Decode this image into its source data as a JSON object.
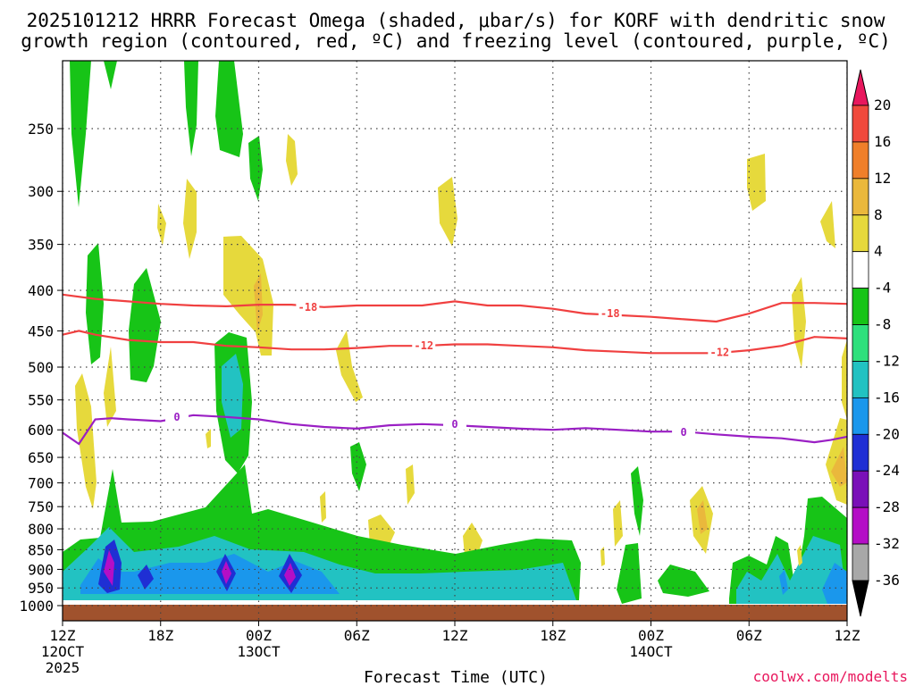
{
  "chart_data": {
    "type": "contour-timeheight",
    "title_line1": "2025101212 HRRR Forecast Omega (shaded, μbar/s) for KORF with dendritic snow",
    "title_line2": "growth region (contoured, red, ºC) and freezing level (contoured, purple, ºC)",
    "xlabel": "Forecast Time (UTC)",
    "credit": "coolwx.com/modelts",
    "x_range_hours": [
      0,
      48
    ],
    "x_ticks": [
      {
        "h": 0,
        "l1": "12Z",
        "l2": "12OCT",
        "l3": "2025"
      },
      {
        "h": 6,
        "l1": "18Z",
        "l2": "",
        "l3": ""
      },
      {
        "h": 12,
        "l1": "00Z",
        "l2": "13OCT",
        "l3": ""
      },
      {
        "h": 18,
        "l1": "06Z",
        "l2": "",
        "l3": ""
      },
      {
        "h": 24,
        "l1": "12Z",
        "l2": "",
        "l3": ""
      },
      {
        "h": 30,
        "l1": "18Z",
        "l2": "",
        "l3": ""
      },
      {
        "h": 36,
        "l1": "00Z",
        "l2": "14OCT",
        "l3": ""
      },
      {
        "h": 42,
        "l1": "06Z",
        "l2": "",
        "l3": ""
      },
      {
        "h": 48,
        "l1": "12Z",
        "l2": "",
        "l3": ""
      }
    ],
    "y_range_hpa": [
      190,
      1040
    ],
    "y_ticks": [
      "250",
      "300",
      "350",
      "400",
      "450",
      "500",
      "550",
      "600",
      "650",
      "700",
      "750",
      "800",
      "850",
      "900",
      "950",
      "1000"
    ],
    "colorbar": {
      "labels": [
        "20",
        "16",
        "12",
        "8",
        "4",
        "-4",
        "-8",
        "-12",
        "-16",
        "-20",
        "-24",
        "-28",
        "-32",
        "-36"
      ],
      "colors": [
        "#e8175d",
        "#f04a3c",
        "#ef7f2a",
        "#eab83c",
        "#e6d93c",
        "#ffffff",
        "#17c417",
        "#2ee07c",
        "#22c2c2",
        "#1a97ec",
        "#1f2fd4",
        "#7a10b8",
        "#b40ec6",
        "#a8a8a8",
        "#000000"
      ]
    },
    "series": [
      {
        "name": "-18",
        "color": "#f04040",
        "hours": [
          0,
          2,
          4,
          6,
          8,
          10,
          12,
          14,
          16,
          18,
          20,
          22,
          24,
          26,
          28,
          30,
          32,
          34,
          36,
          38,
          40,
          42,
          44,
          46,
          48
        ],
        "hpa": [
          405,
          410,
          413,
          416,
          418,
          419,
          417,
          417,
          420,
          418,
          418,
          418,
          413,
          418,
          418,
          422,
          428,
          430,
          432,
          435,
          438,
          428,
          415,
          415,
          416
        ]
      },
      {
        "name": "-12",
        "color": "#f04040",
        "hours": [
          0,
          1,
          2,
          4,
          6,
          8,
          10,
          12,
          14,
          16,
          18,
          20,
          22,
          24,
          26,
          28,
          30,
          32,
          34,
          36,
          38,
          40,
          42,
          44,
          46,
          48
        ],
        "hpa": [
          455,
          450,
          455,
          462,
          465,
          465,
          470,
          472,
          475,
          475,
          473,
          470,
          470,
          468,
          468,
          470,
          472,
          476,
          478,
          480,
          480,
          480,
          476,
          470,
          458,
          460
        ]
      },
      {
        "name": "0",
        "color": "#9a1fc4",
        "hours": [
          0,
          1,
          2,
          3,
          4,
          6,
          8,
          10,
          12,
          14,
          16,
          18,
          20,
          22,
          24,
          26,
          28,
          30,
          32,
          34,
          36,
          38,
          40,
          42,
          44,
          46,
          47,
          48
        ],
        "hpa": [
          605,
          625,
          582,
          580,
          582,
          585,
          575,
          578,
          582,
          590,
          595,
          598,
          592,
          590,
          592,
          595,
          598,
          600,
          597,
          600,
          603,
          603,
          608,
          612,
          615,
          622,
          618,
          612
        ]
      }
    ],
    "contour_labels": [
      {
        "text": "-18",
        "h": 15.0,
        "hpa": 420
      },
      {
        "text": "-18",
        "h": 33.5,
        "hpa": 428
      },
      {
        "text": "-12",
        "h": 22.1,
        "hpa": 470
      },
      {
        "text": "-12",
        "h": 40.2,
        "hpa": 479
      },
      {
        "text": "0",
        "h": 7.0,
        "hpa": 578
      },
      {
        "text": "0",
        "h": 24.0,
        "hpa": 590
      },
      {
        "text": "0",
        "h": 38.0,
        "hpa": 604
      }
    ]
  }
}
